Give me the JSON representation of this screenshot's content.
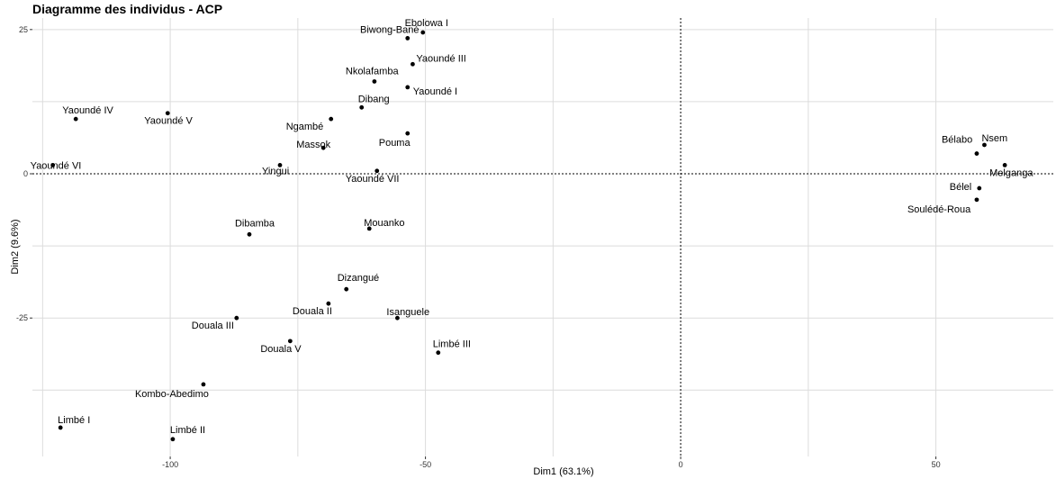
{
  "chart_data": {
    "type": "scatter",
    "title": "Diagramme des individus - ACP",
    "xlabel": "Dim1 (63.1%)",
    "ylabel": "Dim2 (9.6%)",
    "xlim": [
      -127,
      73
    ],
    "ylim": [
      -49,
      27
    ],
    "xticks": [
      -100,
      -50,
      0,
      50
    ],
    "xtick_labels": [
      "-100",
      "-50",
      "0",
      "50"
    ],
    "yticks": [
      25,
      0,
      -25
    ],
    "ytick_labels": [
      "25",
      "0",
      "-25"
    ],
    "minor_x": [
      -125,
      -75,
      -25,
      25
    ],
    "minor_y": [
      12.5,
      -12.5,
      -37.5
    ],
    "reference_lines": {
      "x": 0,
      "y": 0
    },
    "grid": true,
    "legend": "none",
    "points": [
      {
        "label": "Ebolowa I",
        "x": -50.5,
        "y": 24.5
      },
      {
        "label": "Biwong-Bané",
        "x": -53.5,
        "y": 23.5
      },
      {
        "label": "Yaoundé III",
        "x": -52.5,
        "y": 19
      },
      {
        "label": "Nkolafamba",
        "x": -60,
        "y": 16
      },
      {
        "label": "Yaoundé I",
        "x": -53.5,
        "y": 15
      },
      {
        "label": "Dibang",
        "x": -62.5,
        "y": 11.5
      },
      {
        "label": "Ngambé",
        "x": -68.5,
        "y": 9.5
      },
      {
        "label": "Pouma",
        "x": -53.5,
        "y": 7
      },
      {
        "label": "Massok",
        "x": -70,
        "y": 4.5
      },
      {
        "label": "Yingui",
        "x": -78.5,
        "y": 1.5
      },
      {
        "label": "Yaoundé VII",
        "x": -59.5,
        "y": 0.5
      },
      {
        "label": "Yaoundé IV",
        "x": -118.5,
        "y": 9.5
      },
      {
        "label": "Yaoundé V",
        "x": -100.5,
        "y": 10.5
      },
      {
        "label": "Yaoundé VI",
        "x": -123,
        "y": 1.5
      },
      {
        "label": "Dibamba",
        "x": -84.5,
        "y": -10.5
      },
      {
        "label": "Mouanko",
        "x": -61,
        "y": -9.5
      },
      {
        "label": "Dizangué",
        "x": -65.5,
        "y": -20
      },
      {
        "label": "Douala II",
        "x": -69,
        "y": -22.5
      },
      {
        "label": "Isanguele",
        "x": -55.5,
        "y": -25
      },
      {
        "label": "Douala III",
        "x": -87,
        "y": -25
      },
      {
        "label": "Douala V",
        "x": -76.5,
        "y": -29
      },
      {
        "label": "Limbé III",
        "x": -47.5,
        "y": -31
      },
      {
        "label": "Kombo-Abedimo",
        "x": -93.5,
        "y": -36.5
      },
      {
        "label": "Limbé I",
        "x": -121.5,
        "y": -44
      },
      {
        "label": "Limbé II",
        "x": -99.5,
        "y": -46
      },
      {
        "label": "Nsem",
        "x": 59.5,
        "y": 5
      },
      {
        "label": "Bélabo",
        "x": 58,
        "y": 3.5
      },
      {
        "label": "Melganga",
        "x": 63.5,
        "y": 1.5
      },
      {
        "label": "Bélel",
        "x": 58.5,
        "y": -2.5
      },
      {
        "label": "Soulédé-Roua",
        "x": 58,
        "y": -4.5
      }
    ]
  }
}
